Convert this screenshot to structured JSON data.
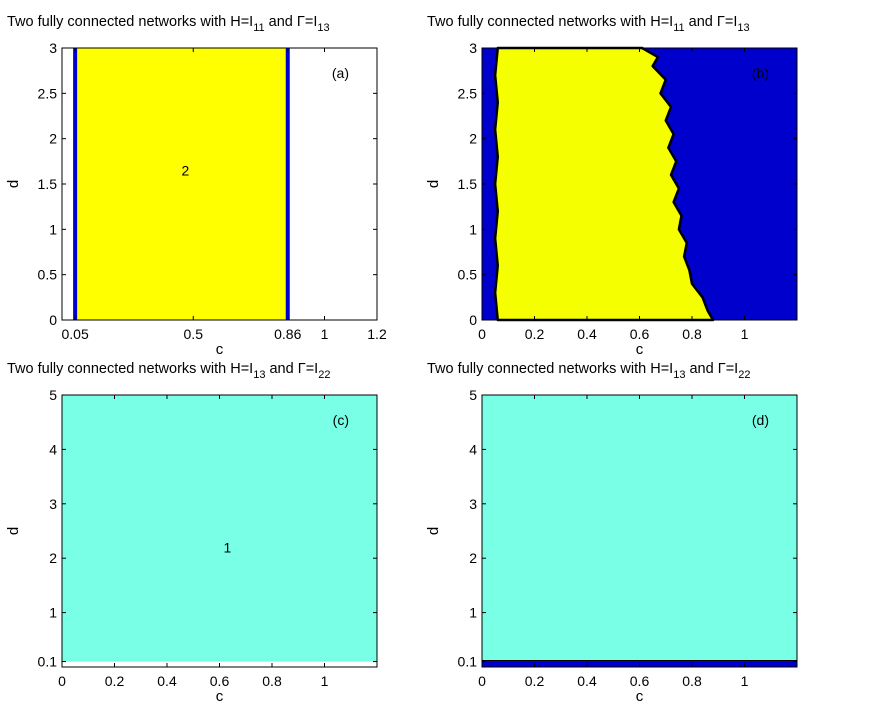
{
  "chart_data": [
    {
      "panel": "(a)",
      "type": "heatmap",
      "title": {
        "prefix": "Two fully connected networks with H=I",
        "h_sub": "11",
        "mid": " and ",
        "gamma": "Γ",
        "eq": "=I",
        "g_sub": "13"
      },
      "xlabel": "c",
      "ylabel": "d",
      "xlim": [
        0,
        1.2
      ],
      "ylim": [
        0,
        3
      ],
      "xticks": [
        0.05,
        0.5,
        0.86,
        1,
        1.2
      ],
      "xtick_labels": [
        "0.05",
        "0.5",
        "0.86",
        "1",
        "1.2"
      ],
      "yticks": [
        0,
        0.5,
        1,
        1.5,
        2,
        2.5,
        3
      ],
      "ytick_labels": [
        "0",
        "0.5",
        "1",
        "1.5",
        "2",
        "2.5",
        "3"
      ],
      "regions": [
        {
          "x": [
            0.05,
            0.86
          ],
          "y": [
            0,
            3
          ],
          "color": "#ffff00",
          "label": "2"
        }
      ],
      "boundaries": [
        {
          "x": 0.05,
          "color": "#0000cc"
        },
        {
          "x": 0.86,
          "color": "#0000cc"
        }
      ],
      "region_label_position": {
        "x": 0.47,
        "y": 1.65
      }
    },
    {
      "panel": "(b)",
      "type": "heatmap",
      "title": {
        "prefix": "Two fully connected networks with H=I",
        "h_sub": "11",
        "mid": " and ",
        "gamma": "Γ",
        "eq": "=I",
        "g_sub": "13"
      },
      "xlabel": "c",
      "ylabel": "d",
      "xlim": [
        0,
        1.2
      ],
      "ylim": [
        0,
        3
      ],
      "xticks": [
        0,
        0.2,
        0.4,
        0.6,
        0.8,
        1
      ],
      "xtick_labels": [
        "0",
        "0.2",
        "0.4",
        "0.6",
        "0.8",
        "1"
      ],
      "yticks": [
        0,
        0.5,
        1,
        1.5,
        2,
        2.5,
        3
      ],
      "ytick_labels": [
        "0",
        "0.5",
        "1",
        "1.5",
        "2",
        "2.5",
        "3"
      ],
      "background_color": "#0000cc",
      "region_color": "#f5ff00",
      "left_boundary": [
        {
          "d": 0,
          "c": 0.06
        },
        {
          "d": 0.3,
          "c": 0.05
        },
        {
          "d": 0.6,
          "c": 0.06
        },
        {
          "d": 0.9,
          "c": 0.05
        },
        {
          "d": 1.2,
          "c": 0.06
        },
        {
          "d": 1.5,
          "c": 0.05
        },
        {
          "d": 1.8,
          "c": 0.06
        },
        {
          "d": 2.1,
          "c": 0.05
        },
        {
          "d": 2.4,
          "c": 0.06
        },
        {
          "d": 2.7,
          "c": 0.05
        },
        {
          "d": 3,
          "c": 0.06
        }
      ],
      "right_boundary": [
        {
          "d": 0,
          "c": 0.88
        },
        {
          "d": 0.1,
          "c": 0.86
        },
        {
          "d": 0.25,
          "c": 0.84
        },
        {
          "d": 0.4,
          "c": 0.8
        },
        {
          "d": 0.55,
          "c": 0.79
        },
        {
          "d": 0.7,
          "c": 0.77
        },
        {
          "d": 0.85,
          "c": 0.78
        },
        {
          "d": 1.0,
          "c": 0.75
        },
        {
          "d": 1.15,
          "c": 0.76
        },
        {
          "d": 1.3,
          "c": 0.73
        },
        {
          "d": 1.45,
          "c": 0.75
        },
        {
          "d": 1.6,
          "c": 0.72
        },
        {
          "d": 1.75,
          "c": 0.74
        },
        {
          "d": 1.9,
          "c": 0.71
        },
        {
          "d": 2.05,
          "c": 0.73
        },
        {
          "d": 2.2,
          "c": 0.7
        },
        {
          "d": 2.35,
          "c": 0.72
        },
        {
          "d": 2.5,
          "c": 0.68
        },
        {
          "d": 2.65,
          "c": 0.7
        },
        {
          "d": 2.8,
          "c": 0.65
        },
        {
          "d": 2.9,
          "c": 0.67
        },
        {
          "d": 3,
          "c": 0.61
        }
      ]
    },
    {
      "panel": "(c)",
      "type": "heatmap",
      "title": {
        "prefix": "Two fully connected networks with H=I",
        "h_sub": "13",
        "mid": " and ",
        "gamma": "Γ",
        "eq": "=I",
        "g_sub": "22"
      },
      "xlabel": "c",
      "ylabel": "d",
      "xlim": [
        0,
        1.2
      ],
      "ylim": [
        0,
        5
      ],
      "xticks": [
        0,
        0.2,
        0.4,
        0.6,
        0.8,
        1
      ],
      "xtick_labels": [
        "0",
        "0.2",
        "0.4",
        "0.6",
        "0.8",
        "1"
      ],
      "yticks": [
        0.1,
        1,
        2,
        3,
        4,
        5
      ],
      "ytick_labels": [
        "0.1",
        "1",
        "2",
        "3",
        "4",
        "5"
      ],
      "regions": [
        {
          "x": [
            0,
            1.2
          ],
          "y": [
            0.1,
            5
          ],
          "color": "#78ffe6",
          "label": "1"
        }
      ],
      "region_label_position": {
        "x": 0.63,
        "y": 2.2
      }
    },
    {
      "panel": "(d)",
      "type": "heatmap",
      "title": {
        "prefix": "Two fully connected networks with H=I",
        "h_sub": "13",
        "mid": " and ",
        "gamma": "Γ",
        "eq": "=I",
        "g_sub": "22"
      },
      "xlabel": "c",
      "ylabel": "d",
      "xlim": [
        0,
        1.2
      ],
      "ylim": [
        0,
        5
      ],
      "xticks": [
        0,
        0.2,
        0.4,
        0.6,
        0.8,
        1
      ],
      "xtick_labels": [
        "0",
        "0.2",
        "0.4",
        "0.6",
        "0.8",
        "1"
      ],
      "yticks": [
        0.1,
        1,
        2,
        3,
        4,
        5
      ],
      "ytick_labels": [
        "0.1",
        "1",
        "2",
        "3",
        "4",
        "5"
      ],
      "regions": [
        {
          "x": [
            0,
            1.2
          ],
          "y": [
            0.1,
            5
          ],
          "color": "#78ffe6"
        }
      ],
      "bottom_band": {
        "y": [
          0,
          0.1
        ],
        "color": "#0000cc"
      }
    }
  ]
}
